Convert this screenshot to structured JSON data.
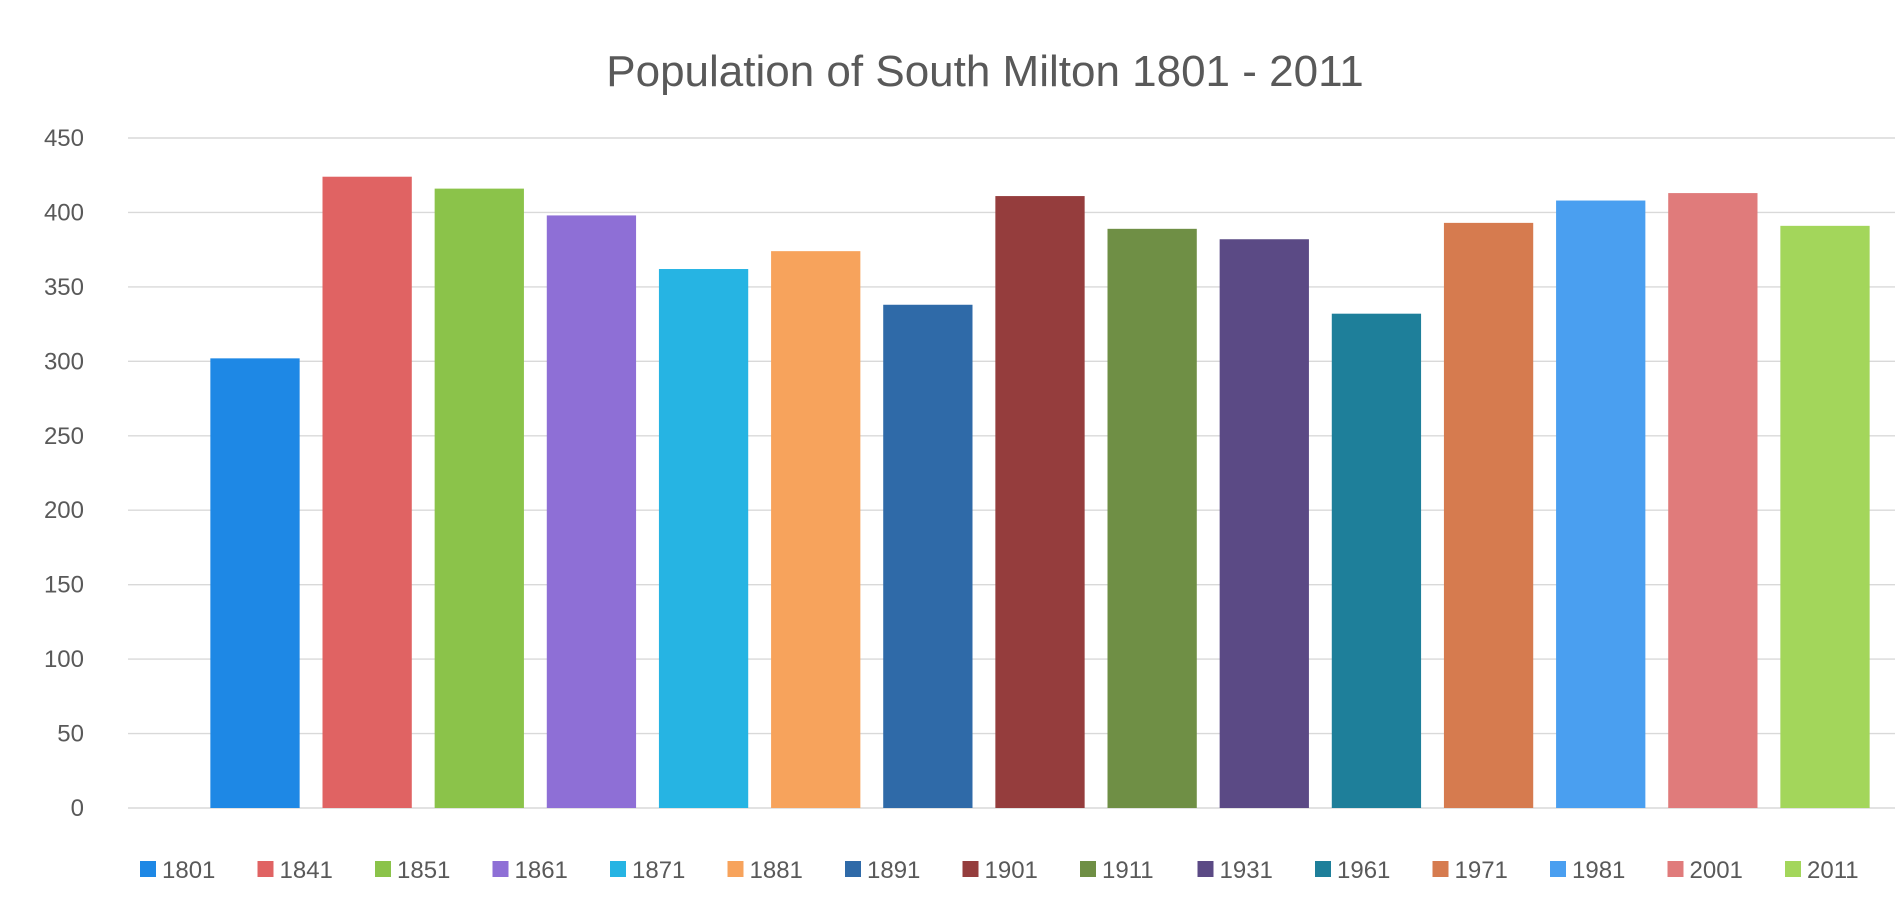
{
  "chart_data": {
    "type": "bar",
    "title": "Population of South Milton 1801 - 2011",
    "xlabel": "",
    "ylabel": "",
    "ylim": [
      0,
      450
    ],
    "yticks": [
      0,
      50,
      100,
      150,
      200,
      250,
      300,
      350,
      400,
      450
    ],
    "grid": true,
    "legend_position": "bottom",
    "series": [
      {
        "name": "1801",
        "value": 302,
        "color": "#1e88e5"
      },
      {
        "name": "1841",
        "value": 424,
        "color": "#e06363"
      },
      {
        "name": "1851",
        "value": 416,
        "color": "#8bc34a"
      },
      {
        "name": "1861",
        "value": 398,
        "color": "#8e6fd6"
      },
      {
        "name": "1871",
        "value": 362,
        "color": "#26b4e3"
      },
      {
        "name": "1881",
        "value": 374,
        "color": "#f7a35c"
      },
      {
        "name": "1891",
        "value": 338,
        "color": "#2f6aa8"
      },
      {
        "name": "1901",
        "value": 411,
        "color": "#953d3d"
      },
      {
        "name": "1911",
        "value": 389,
        "color": "#6f8f45"
      },
      {
        "name": "1931",
        "value": 382,
        "color": "#5b4a85"
      },
      {
        "name": "1961",
        "value": 332,
        "color": "#1e7f9a"
      },
      {
        "name": "1971",
        "value": 393,
        "color": "#d67b4f"
      },
      {
        "name": "1981",
        "value": 408,
        "color": "#4a9ff0"
      },
      {
        "name": "2001",
        "value": 413,
        "color": "#e07b7b"
      },
      {
        "name": "2011",
        "value": 391,
        "color": "#a3d65b"
      }
    ]
  }
}
